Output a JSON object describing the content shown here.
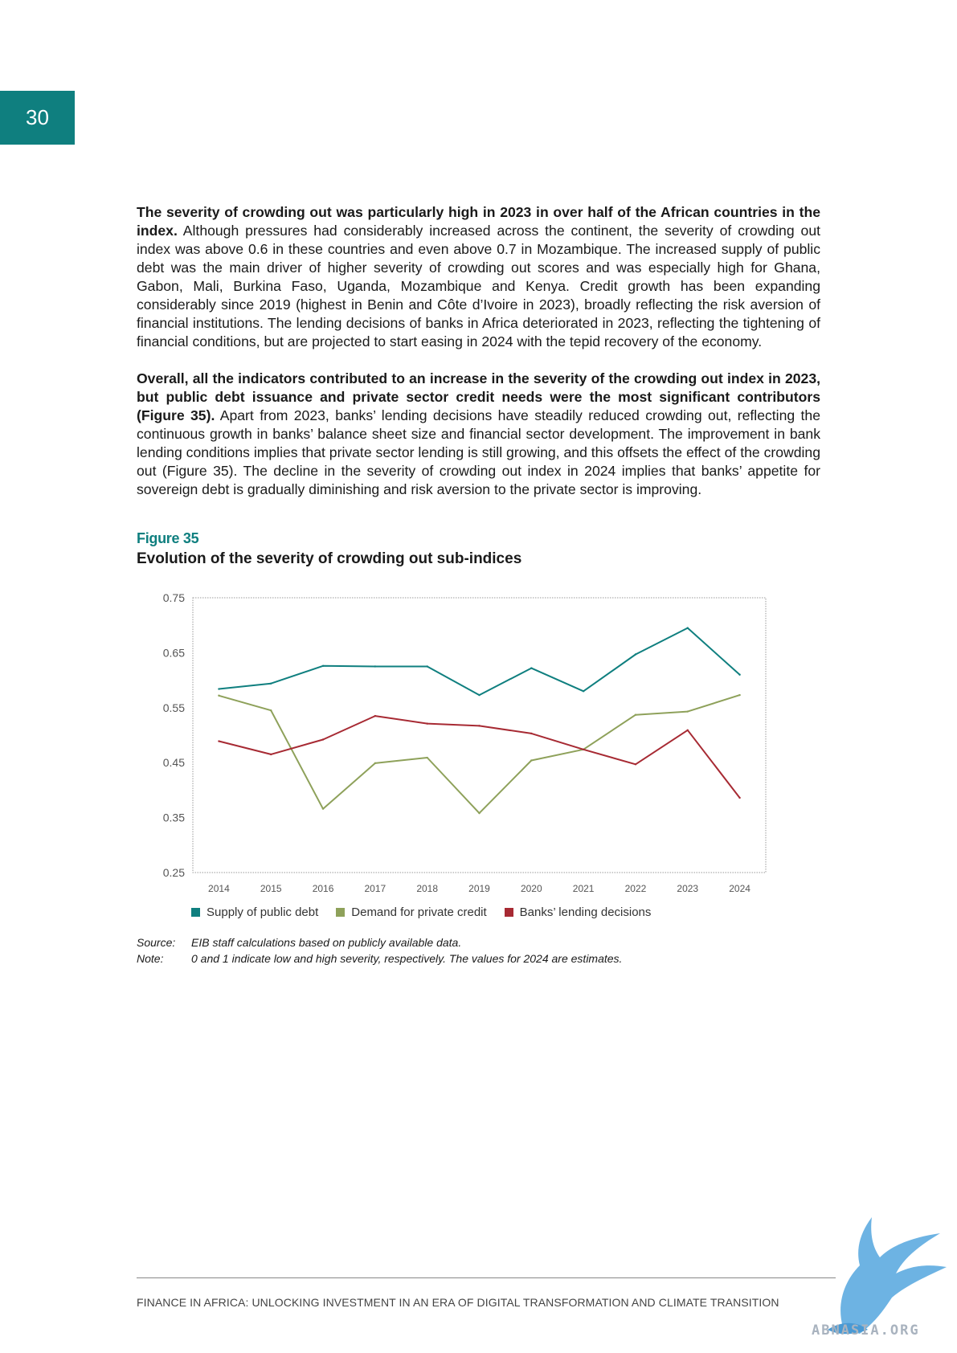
{
  "page_number": "30",
  "paragraphs": {
    "p1_bold": "The severity of crowding out was particularly high in 2023 in over half of the African countries in the index.",
    "p1_rest": " Although pressures had considerably increased across the continent, the severity of crowding out index was above 0.6 in these countries and even above 0.7 in Mozambique. The increased supply of public debt was the main driver of higher severity of crowding out scores and was especially high for Ghana, Gabon, Mali, Burkina Faso, Uganda, Mozambique and Kenya. Credit growth has been expanding considerably since 2019 (highest in Benin and Côte d’Ivoire in 2023), broadly reflecting the risk aversion of financial institutions. The lending decisions of banks in Africa deteriorated in 2023, reflecting the tightening of financial conditions, but are projected to start easing in 2024 with the tepid recovery of the economy.",
    "p2_bold": "Overall, all the indicators contributed to an increase in the severity of the crowding out index in 2023, but public debt issuance and private sector credit needs were the most significant contributors (Figure 35).",
    "p2_rest": " Apart from 2023, banks’ lending decisions have steadily reduced crowding out, reflecting the continuous growth in banks’ balance sheet size and financial sector development. The improvement in bank lending conditions implies that private sector lending is still growing, and this offsets the effect of the crowding out (Figure 35). The decline in the severity of crowding out index in 2024 implies that banks’ appetite for sovereign debt is gradually diminishing and risk aversion to the private sector is improving."
  },
  "figure": {
    "label": "Figure 35",
    "title": "Evolution of the severity of crowding out sub-indices"
  },
  "chart_data": {
    "type": "line",
    "title": "Evolution of the severity of crowding out sub-indices",
    "x": [
      "2014",
      "2015",
      "2016",
      "2017",
      "2018",
      "2019",
      "2020",
      "2021",
      "2022",
      "2023",
      "2024"
    ],
    "ylim": [
      0.25,
      0.75
    ],
    "yticks": [
      "0.75",
      "0.65",
      "0.55",
      "0.45",
      "0.35",
      "0.25"
    ],
    "grid": false,
    "legend_position": "bottom",
    "series": [
      {
        "name": "Supply of public debt",
        "color": "#0f7f7f",
        "values": [
          0.584,
          0.594,
          0.626,
          0.625,
          0.625,
          0.573,
          0.622,
          0.58,
          0.647,
          0.695,
          0.61
        ]
      },
      {
        "name": "Demand for private credit",
        "color": "#8ea15a",
        "values": [
          0.572,
          0.545,
          0.366,
          0.449,
          0.459,
          0.358,
          0.454,
          0.474,
          0.537,
          0.543,
          0.573
        ]
      },
      {
        "name": "Banks’ lending decisions",
        "color": "#a72a33",
        "values": [
          0.489,
          0.465,
          0.492,
          0.535,
          0.521,
          0.517,
          0.503,
          0.474,
          0.447,
          0.509,
          0.386
        ]
      }
    ]
  },
  "notes": {
    "source_label": "Source:",
    "source_text": "EIB staff calculations based on publicly available data.",
    "note_label": "Note:",
    "note_text": "0 and 1 indicate low and high severity, respectively. The values for 2024 are estimates."
  },
  "footer": "FINANCE IN AFRICA: UNLOCKING INVESTMENT IN AN ERA OF DIGITAL TRANSFORMATION AND CLIMATE TRANSITION",
  "watermark": "ABNASIA.ORG"
}
